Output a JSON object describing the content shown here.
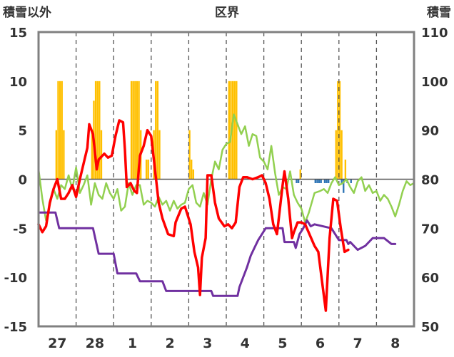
{
  "chart_data": {
    "type": "line",
    "title": "区界",
    "left_axis_label": "積雪以外",
    "right_axis_label": "積雪",
    "ylim": [
      -15,
      15
    ],
    "y2lim": [
      50,
      110
    ],
    "y_ticks": [
      -15,
      -10,
      -5,
      0,
      5,
      10,
      15
    ],
    "y2_ticks": [
      50,
      60,
      70,
      80,
      90,
      100,
      110
    ],
    "x_ticks": [
      "27",
      "28",
      "1",
      "2",
      "3",
      "4",
      "5",
      "6",
      "7",
      "8"
    ],
    "x_range_days": [
      0,
      10
    ],
    "grid": "vertical dashed day separators",
    "legend": "none",
    "colors": {
      "red_line": "#ff0000",
      "green_line": "#92d050",
      "purple_line": "#7030a0",
      "orange_bars": "#ffc000",
      "blue_bars": "#2e75b6",
      "frame": "#808080"
    },
    "red_series": [
      [
        0.0,
        -4.6
      ],
      [
        0.1,
        -5.4
      ],
      [
        0.2,
        -4.8
      ],
      [
        0.3,
        -2.4
      ],
      [
        0.4,
        -1.0
      ],
      [
        0.5,
        0.0
      ],
      [
        0.6,
        -2.0
      ],
      [
        0.7,
        -2.0
      ],
      [
        0.8,
        -1.4
      ],
      [
        0.9,
        -0.6
      ],
      [
        1.0,
        -1.8
      ],
      [
        1.1,
        0.0
      ],
      [
        1.2,
        1.6
      ],
      [
        1.3,
        3.2
      ],
      [
        1.35,
        5.6
      ],
      [
        1.45,
        4.6
      ],
      [
        1.55,
        1.0
      ],
      [
        1.6,
        2.0
      ],
      [
        1.75,
        2.6
      ],
      [
        1.85,
        2.2
      ],
      [
        1.95,
        2.4
      ],
      [
        2.05,
        4.4
      ],
      [
        2.15,
        6.0
      ],
      [
        2.25,
        5.8
      ],
      [
        2.3,
        3.0
      ],
      [
        2.35,
        -0.8
      ],
      [
        2.45,
        -0.4
      ],
      [
        2.55,
        -1.2
      ],
      [
        2.62,
        -1.4
      ],
      [
        2.7,
        2.4
      ],
      [
        2.8,
        3.4
      ],
      [
        2.9,
        5.0
      ],
      [
        3.0,
        4.4
      ],
      [
        3.1,
        1.0
      ],
      [
        3.2,
        -2.4
      ],
      [
        3.3,
        -4.0
      ],
      [
        3.45,
        -5.6
      ],
      [
        3.6,
        -5.8
      ],
      [
        3.65,
        -4.4
      ],
      [
        3.8,
        -3.0
      ],
      [
        3.9,
        -2.8
      ],
      [
        4.05,
        -4.6
      ],
      [
        4.15,
        -7.4
      ],
      [
        4.25,
        -9.0
      ],
      [
        4.3,
        -11.8
      ],
      [
        4.35,
        -8.0
      ],
      [
        4.45,
        -6.0
      ],
      [
        4.5,
        0.4
      ],
      [
        4.6,
        0.4
      ],
      [
        4.7,
        -2.4
      ],
      [
        4.8,
        -4.0
      ],
      [
        4.95,
        -4.8
      ],
      [
        5.05,
        -4.6
      ],
      [
        5.15,
        -5.0
      ],
      [
        5.25,
        -4.4
      ],
      [
        5.35,
        -0.8
      ],
      [
        5.45,
        0.2
      ],
      [
        5.55,
        0.2
      ],
      [
        5.7,
        0.0
      ],
      [
        5.85,
        0.2
      ],
      [
        5.95,
        0.4
      ],
      [
        6.05,
        -0.4
      ],
      [
        6.15,
        -2.0
      ],
      [
        6.25,
        -4.6
      ],
      [
        6.35,
        -5.6
      ],
      [
        6.5,
        -0.6
      ],
      [
        6.55,
        0.8
      ],
      [
        6.65,
        -2.0
      ],
      [
        6.7,
        -4.0
      ],
      [
        6.75,
        -6.0
      ],
      [
        6.8,
        -5.4
      ],
      [
        6.9,
        -4.4
      ],
      [
        7.0,
        -4.4
      ],
      [
        7.1,
        -4.6
      ],
      [
        7.35,
        -6.8
      ],
      [
        7.45,
        -7.4
      ],
      [
        7.55,
        -10.4
      ],
      [
        7.65,
        -13.4
      ],
      [
        7.75,
        -6.0
      ],
      [
        7.85,
        -2.0
      ],
      [
        7.95,
        -2.2
      ],
      [
        8.05,
        -5.0
      ],
      [
        8.15,
        -7.4
      ],
      [
        8.25,
        -7.2
      ]
    ],
    "green_series": [
      [
        0.0,
        1.0
      ],
      [
        0.1,
        -2.0
      ],
      [
        0.2,
        -4.2
      ],
      [
        0.3,
        -2.6
      ],
      [
        0.4,
        -1.0
      ],
      [
        0.5,
        -2.0
      ],
      [
        0.6,
        -0.6
      ],
      [
        0.7,
        -1.0
      ],
      [
        0.8,
        0.4
      ],
      [
        0.9,
        -1.0
      ],
      [
        1.0,
        1.2
      ],
      [
        1.1,
        -1.4
      ],
      [
        1.2,
        -0.6
      ],
      [
        1.3,
        0.4
      ],
      [
        1.4,
        -2.6
      ],
      [
        1.5,
        -0.4
      ],
      [
        1.6,
        -1.6
      ],
      [
        1.7,
        -2.0
      ],
      [
        1.8,
        -0.4
      ],
      [
        1.9,
        -1.4
      ],
      [
        2.0,
        -2.0
      ],
      [
        2.1,
        -1.0
      ],
      [
        2.2,
        -3.2
      ],
      [
        2.3,
        -2.8
      ],
      [
        2.4,
        -0.4
      ],
      [
        2.5,
        -1.6
      ],
      [
        2.6,
        -0.6
      ],
      [
        2.7,
        -0.6
      ],
      [
        2.8,
        -2.6
      ],
      [
        2.9,
        -2.2
      ],
      [
        3.0,
        -2.4
      ],
      [
        3.1,
        -2.8
      ],
      [
        3.2,
        -1.8
      ],
      [
        3.3,
        -2.6
      ],
      [
        3.4,
        -2.2
      ],
      [
        3.5,
        -3.2
      ],
      [
        3.6,
        -2.2
      ],
      [
        3.7,
        -3.0
      ],
      [
        3.8,
        -2.6
      ],
      [
        3.9,
        -2.4
      ],
      [
        4.0,
        -1.0
      ],
      [
        4.1,
        -0.6
      ],
      [
        4.2,
        -2.4
      ],
      [
        4.3,
        -2.8
      ],
      [
        4.4,
        -1.4
      ],
      [
        4.5,
        -2.6
      ],
      [
        4.6,
        0.0
      ],
      [
        4.7,
        1.8
      ],
      [
        4.8,
        1.0
      ],
      [
        4.9,
        3.0
      ],
      [
        5.0,
        3.6
      ],
      [
        5.1,
        3.8
      ],
      [
        5.2,
        6.6
      ],
      [
        5.3,
        5.6
      ],
      [
        5.4,
        4.6
      ],
      [
        5.5,
        5.4
      ],
      [
        5.6,
        3.4
      ],
      [
        5.7,
        4.6
      ],
      [
        5.8,
        4.4
      ],
      [
        5.9,
        2.2
      ],
      [
        6.0,
        1.8
      ],
      [
        6.1,
        1.0
      ],
      [
        6.2,
        3.4
      ],
      [
        6.3,
        0.6
      ],
      [
        6.4,
        -1.6
      ],
      [
        6.5,
        -0.8
      ],
      [
        6.6,
        -1.0
      ],
      [
        6.7,
        0.8
      ],
      [
        6.8,
        -1.6
      ],
      [
        6.9,
        -2.4
      ],
      [
        7.0,
        -3.0
      ],
      [
        7.1,
        -4.4
      ],
      [
        7.2,
        -3.4
      ],
      [
        7.35,
        -1.4
      ],
      [
        7.5,
        -1.2
      ],
      [
        7.6,
        -1.0
      ],
      [
        7.7,
        -1.4
      ],
      [
        7.8,
        -0.4
      ],
      [
        7.9,
        0.2
      ],
      [
        8.0,
        -0.6
      ],
      [
        8.1,
        -0.4
      ],
      [
        8.2,
        0.0
      ],
      [
        8.3,
        -0.8
      ],
      [
        8.4,
        -1.4
      ],
      [
        8.5,
        -0.2
      ],
      [
        8.6,
        0.2
      ],
      [
        8.7,
        -1.2
      ],
      [
        8.8,
        -0.6
      ],
      [
        8.9,
        -1.4
      ],
      [
        9.0,
        -1.2
      ],
      [
        9.1,
        -2.2
      ],
      [
        9.2,
        -1.6
      ],
      [
        9.3,
        -2.0
      ],
      [
        9.4,
        -2.8
      ],
      [
        9.5,
        -3.8
      ],
      [
        9.6,
        -2.6
      ],
      [
        9.7,
        -1.2
      ],
      [
        9.8,
        -0.2
      ],
      [
        9.9,
        -0.6
      ],
      [
        10.0,
        -0.4
      ]
    ],
    "purple_series": [
      [
        0.0,
        -3.4
      ],
      [
        0.1,
        -3.4
      ],
      [
        0.45,
        -3.4
      ],
      [
        0.55,
        -5.0
      ],
      [
        1.45,
        -5.0
      ],
      [
        1.6,
        -7.6
      ],
      [
        2.0,
        -7.6
      ],
      [
        2.1,
        -9.6
      ],
      [
        2.6,
        -9.6
      ],
      [
        2.7,
        -10.4
      ],
      [
        3.3,
        -10.4
      ],
      [
        3.4,
        -11.4
      ],
      [
        4.6,
        -11.4
      ],
      [
        4.65,
        -11.9
      ],
      [
        5.3,
        -11.9
      ],
      [
        5.35,
        -11.0
      ],
      [
        5.55,
        -9.0
      ],
      [
        5.65,
        -7.8
      ],
      [
        5.75,
        -7.0
      ],
      [
        5.85,
        -6.2
      ],
      [
        5.95,
        -5.6
      ],
      [
        6.05,
        -5.0
      ],
      [
        6.5,
        -5.0
      ],
      [
        6.55,
        -6.4
      ],
      [
        6.8,
        -6.4
      ],
      [
        6.85,
        -7.0
      ],
      [
        6.95,
        -5.6
      ],
      [
        7.05,
        -5.0
      ],
      [
        7.15,
        -4.2
      ],
      [
        7.25,
        -4.8
      ],
      [
        7.35,
        -4.6
      ],
      [
        7.8,
        -5.0
      ],
      [
        8.0,
        -6.2
      ],
      [
        8.2,
        -6.2
      ],
      [
        8.25,
        -6.6
      ],
      [
        8.3,
        -6.4
      ],
      [
        8.5,
        -7.2
      ],
      [
        8.7,
        -6.8
      ],
      [
        8.9,
        -6.0
      ],
      [
        9.0,
        -6.0
      ],
      [
        9.2,
        -6.0
      ],
      [
        9.4,
        -6.6
      ],
      [
        9.5,
        -6.6
      ]
    ],
    "orange_bars": [
      [
        0.45,
        5
      ],
      [
        0.5,
        10
      ],
      [
        0.55,
        10
      ],
      [
        0.6,
        10
      ],
      [
        0.65,
        5
      ],
      [
        1.4,
        5
      ],
      [
        1.45,
        8
      ],
      [
        1.5,
        10
      ],
      [
        1.55,
        10
      ],
      [
        1.6,
        10
      ],
      [
        1.65,
        5
      ],
      [
        2.45,
        10
      ],
      [
        2.5,
        10
      ],
      [
        2.55,
        10
      ],
      [
        2.6,
        10
      ],
      [
        2.65,
        10
      ],
      [
        2.7,
        5
      ],
      [
        2.85,
        2
      ],
      [
        2.9,
        2
      ],
      [
        3.05,
        5
      ],
      [
        3.1,
        10
      ],
      [
        3.15,
        10
      ],
      [
        3.2,
        5
      ],
      [
        4.0,
        5
      ],
      [
        4.05,
        2
      ],
      [
        4.1,
        1
      ],
      [
        5.05,
        10
      ],
      [
        5.1,
        10
      ],
      [
        5.15,
        10
      ],
      [
        5.2,
        10
      ],
      [
        5.25,
        10
      ],
      [
        6.95,
        1
      ],
      [
        7.9,
        5
      ],
      [
        7.95,
        10
      ],
      [
        8.0,
        10
      ],
      [
        8.05,
        5
      ],
      [
        8.15,
        2
      ]
    ],
    "blue_bars": [
      [
        6.85,
        -0.4
      ],
      [
        6.9,
        -0.4
      ],
      [
        7.35,
        -0.4
      ],
      [
        7.4,
        -0.4
      ],
      [
        7.45,
        -0.4
      ],
      [
        7.5,
        -0.4
      ],
      [
        7.6,
        -0.4
      ],
      [
        7.65,
        -0.4
      ],
      [
        7.7,
        -0.4
      ],
      [
        8.05,
        -0.4
      ],
      [
        8.1,
        -1.4
      ],
      [
        8.2,
        -0.4
      ],
      [
        8.3,
        -0.4
      ]
    ]
  }
}
